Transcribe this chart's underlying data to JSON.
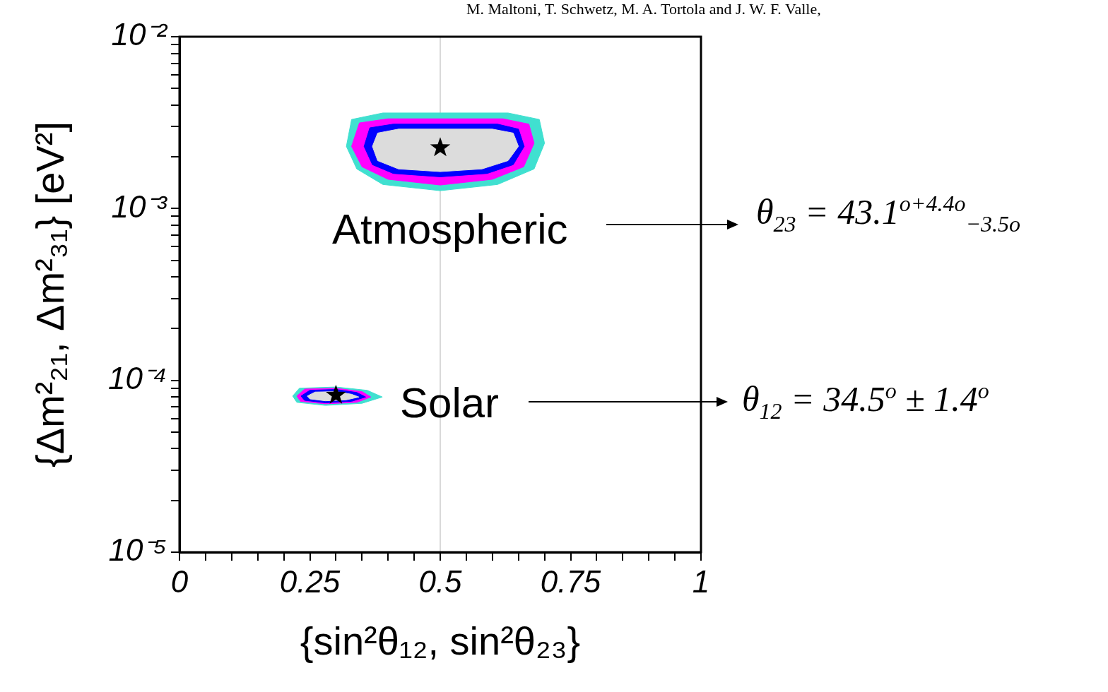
{
  "chart_data": {
    "type": "area",
    "xlabel": "{sin²θ₁₂, sin²θ₂₃}",
    "ylabel": "{Δm²₂₁, Δm²₃₁} [eV²]",
    "log": "y",
    "xlim": [
      0,
      1
    ],
    "ylim": [
      1e-05,
      0.01
    ],
    "xticks": [
      0,
      {
        "value": 0.05,
        "label": null
      },
      {
        "value": 0.1,
        "label": null
      },
      {
        "value": 0.15,
        "label": null
      },
      {
        "value": 0.2,
        "label": null
      },
      0.25,
      {
        "value": 0.3,
        "label": null
      },
      {
        "value": 0.35,
        "label": null
      },
      {
        "value": 0.4,
        "label": null
      },
      {
        "value": 0.45,
        "label": null
      },
      0.5,
      {
        "value": 0.55,
        "label": null
      },
      {
        "value": 0.6,
        "label": null
      },
      {
        "value": 0.65,
        "label": null
      },
      {
        "value": 0.7,
        "label": null
      },
      0.75,
      {
        "value": 0.8,
        "label": null
      },
      {
        "value": 0.85,
        "label": null
      },
      {
        "value": 0.9,
        "label": null
      },
      {
        "value": 0.95,
        "label": null
      },
      1
    ],
    "yticks": [
      {
        "value": 1e-05,
        "label": "10⁻⁵"
      },
      {
        "value": 2e-05,
        "label": null
      },
      {
        "value": 3e-05,
        "label": null
      },
      {
        "value": 4e-05,
        "label": null
      },
      {
        "value": 5e-05,
        "label": null
      },
      {
        "value": 6e-05,
        "label": null
      },
      {
        "value": 7e-05,
        "label": null
      },
      {
        "value": 8e-05,
        "label": null
      },
      {
        "value": 9e-05,
        "label": null
      },
      {
        "value": 0.0001,
        "label": "10⁻⁴"
      },
      {
        "value": 0.0002,
        "label": null
      },
      {
        "value": 0.0003,
        "label": null
      },
      {
        "value": 0.0004,
        "label": null
      },
      {
        "value": 0.0005,
        "label": null
      },
      {
        "value": 0.0006,
        "label": null
      },
      {
        "value": 0.0007,
        "label": null
      },
      {
        "value": 0.0008,
        "label": null
      },
      {
        "value": 0.0009,
        "label": null
      },
      {
        "value": 0.001,
        "label": "10⁻³"
      },
      {
        "value": 0.002,
        "label": null
      },
      {
        "value": 0.003,
        "label": null
      },
      {
        "value": 0.004,
        "label": null
      },
      {
        "value": 0.005,
        "label": null
      },
      {
        "value": 0.006,
        "label": null
      },
      {
        "value": 0.007,
        "label": null
      },
      {
        "value": 0.008,
        "label": null
      },
      {
        "value": 0.009,
        "label": null
      },
      {
        "value": 0.01,
        "label": "10⁻²"
      }
    ],
    "legend": false,
    "ref_lines": [
      {
        "axis": "x",
        "value": 0.5,
        "color": "#cccccc"
      }
    ],
    "annotations": [
      "M. Maltoni, T. Schwetz, M. A. Tortola and J. W. F. Valle,",
      "Atmospheric",
      "Solar",
      "θ$_{23}$ = 43.1$^{o+4.4o}$$_{−3.5o}$",
      "θ$_{12}$ = 34.5$^{o}$ ± 1.4$^{o}$"
    ],
    "series": [
      {
        "color": "#40e0d0",
        "x": [
          0.32,
          0.33,
          0.39,
          0.5,
          0.63,
          0.69,
          0.7,
          0.68,
          0.61,
          0.5,
          0.39,
          0.34,
          0.32
        ],
        "values": [
          0.0023,
          0.0033,
          0.0036,
          0.0036,
          0.0036,
          0.0033,
          0.0024,
          0.0017,
          0.00138,
          0.00127,
          0.00138,
          0.0017,
          0.0023
        ]
      },
      {
        "color": "#40e0d0",
        "x": [
          0.217,
          0.23,
          0.3,
          0.36,
          0.389,
          0.35,
          0.28,
          0.225,
          0.217
        ],
        "values": [
          8.1e-05,
          9e-05,
          9.15e-05,
          8.75e-05,
          8e-05,
          7.35e-05,
          7.15e-05,
          7.45e-05,
          8.1e-05
        ]
      },
      {
        "color": "#ff00ff",
        "x": [
          0.33,
          0.345,
          0.4,
          0.5,
          0.62,
          0.67,
          0.68,
          0.66,
          0.6,
          0.5,
          0.4,
          0.35,
          0.33
        ],
        "values": [
          0.0023,
          0.00315,
          0.00333,
          0.00333,
          0.00333,
          0.0031,
          0.0024,
          0.00175,
          0.00148,
          0.00137,
          0.00148,
          0.00175,
          0.0023
        ]
      },
      {
        "color": "#ff00ff",
        "x": [
          0.225,
          0.24,
          0.3,
          0.35,
          0.367,
          0.34,
          0.28,
          0.232,
          0.225
        ],
        "values": [
          8.1e-05,
          8.9e-05,
          9e-05,
          8.6e-05,
          8e-05,
          7.45e-05,
          7.3e-05,
          7.55e-05,
          8.1e-05
        ]
      },
      {
        "color": "#0000ff",
        "x": [
          0.354,
          0.365,
          0.41,
          0.5,
          0.61,
          0.65,
          0.661,
          0.64,
          0.59,
          0.5,
          0.41,
          0.37,
          0.354
        ],
        "values": [
          0.0023,
          0.00295,
          0.0031,
          0.0031,
          0.0031,
          0.0029,
          0.0023,
          0.0018,
          0.0016,
          0.00153,
          0.0016,
          0.0018,
          0.0023
        ]
      },
      {
        "color": "#0000ff",
        "x": [
          0.233,
          0.25,
          0.3,
          0.34,
          0.357,
          0.33,
          0.28,
          0.24,
          0.233
        ],
        "values": [
          8.1e-05,
          8.75e-05,
          8.85e-05,
          8.5e-05,
          8e-05,
          7.55e-05,
          7.4e-05,
          7.65e-05,
          8.1e-05
        ]
      },
      {
        "color": "#dcdcdc",
        "x": [
          0.37,
          0.38,
          0.42,
          0.5,
          0.6,
          0.64,
          0.65,
          0.63,
          0.58,
          0.5,
          0.42,
          0.38,
          0.37
        ],
        "values": [
          0.0023,
          0.00275,
          0.0029,
          0.0029,
          0.0029,
          0.00275,
          0.0023,
          0.0019,
          0.0017,
          0.00164,
          0.0017,
          0.0019,
          0.0023
        ]
      },
      {
        "color": "#dcdcdc",
        "x": [
          0.245,
          0.26,
          0.3,
          0.33,
          0.344,
          0.32,
          0.28,
          0.25,
          0.245
        ],
        "values": [
          8.1e-05,
          8.55e-05,
          8.6e-05,
          8.3e-05,
          8e-05,
          7.7e-05,
          7.6e-05,
          7.8e-05,
          8.1e-05
        ]
      },
      {
        "type": "scatter",
        "color": "#000000",
        "marker": "star",
        "x": [
          0.5,
          0.3
        ],
        "values": [
          0.00226,
          8.2e-05
        ]
      }
    ]
  }
}
